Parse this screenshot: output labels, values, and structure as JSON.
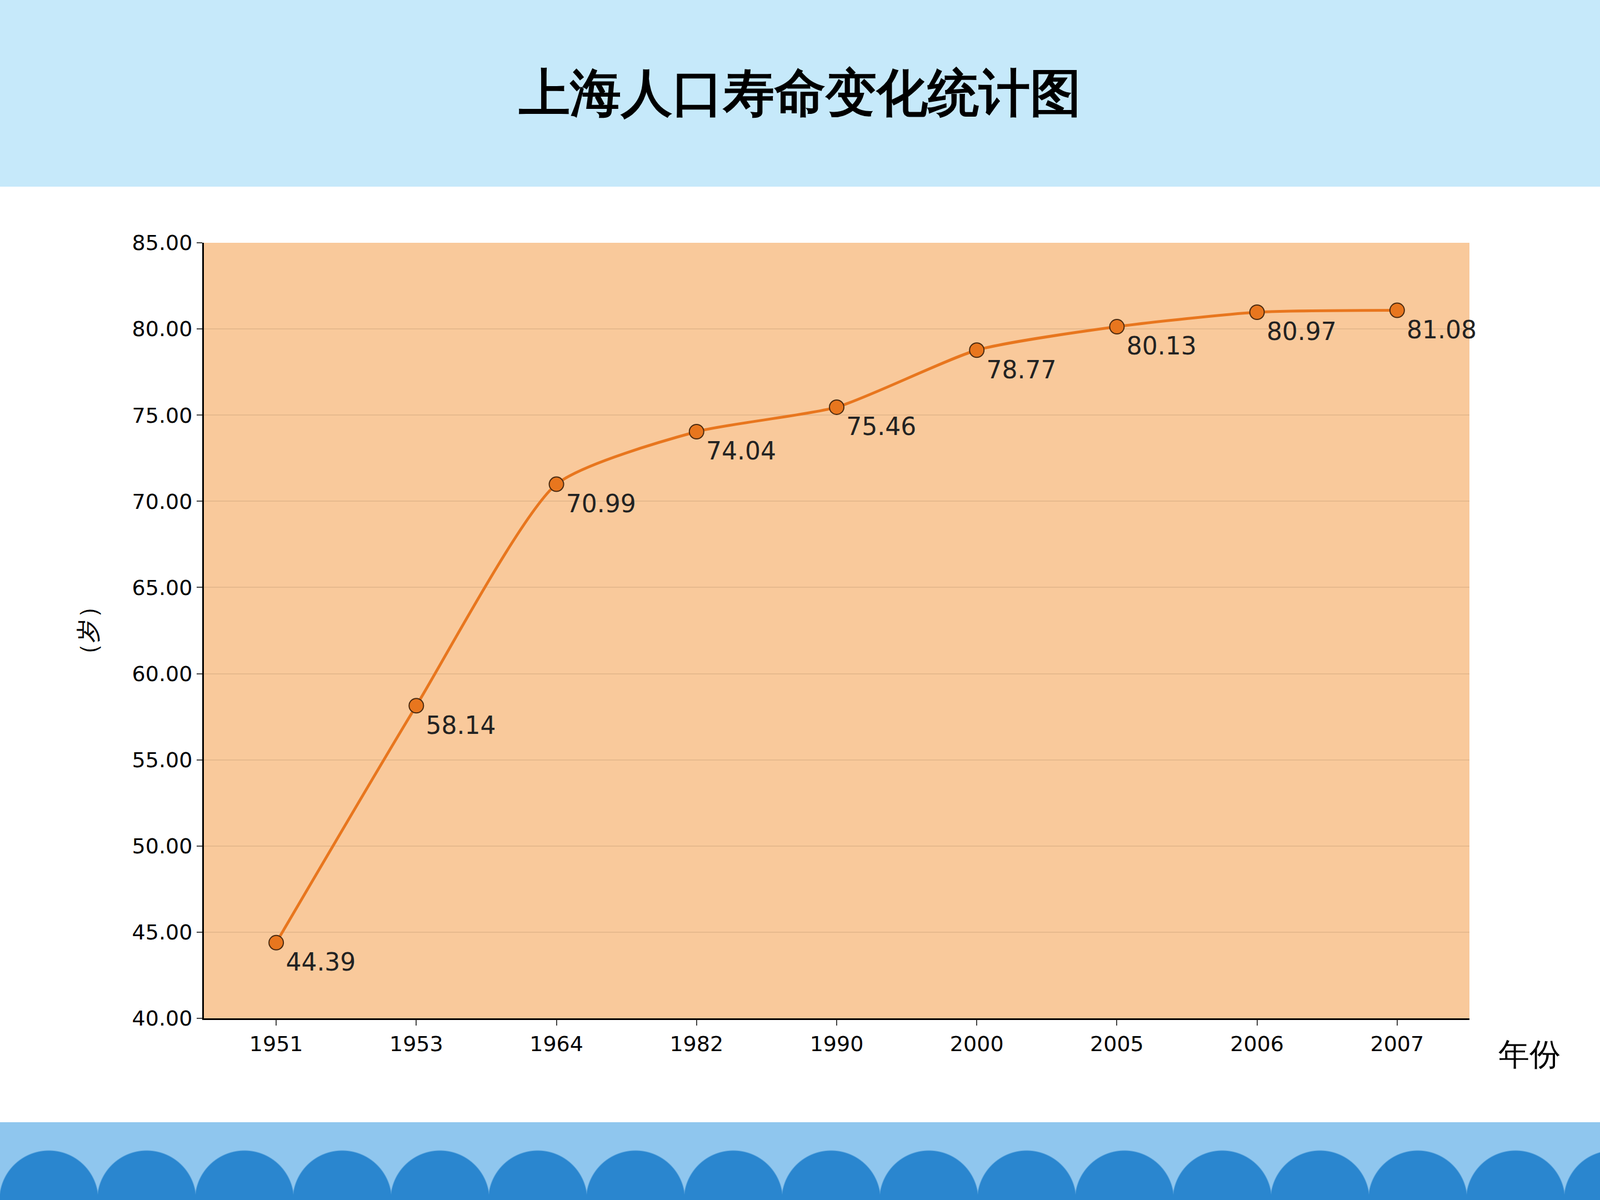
{
  "chart_data": {
    "type": "line",
    "title": "上海人口寿命变化统计图",
    "x_label": "年份",
    "y_label": "（岁）",
    "categories": [
      "1951",
      "1953",
      "1964",
      "1982",
      "1990",
      "2000",
      "2005",
      "2006",
      "2007"
    ],
    "values": [
      44.39,
      58.14,
      70.99,
      74.04,
      75.46,
      78.77,
      80.13,
      80.97,
      81.08
    ],
    "color": "#e8761e",
    "marker": "circle",
    "ylim": [
      40,
      85
    ],
    "yticks": [
      {
        "value": 40,
        "label": "40.00"
      },
      {
        "value": 45,
        "label": "45.00"
      },
      {
        "value": 50,
        "label": "50.00"
      },
      {
        "value": 55,
        "label": "55.00"
      },
      {
        "value": 60,
        "label": "60.00"
      },
      {
        "value": 65,
        "label": "65.00"
      },
      {
        "value": 70,
        "label": "70.00"
      },
      {
        "value": 75,
        "label": "75.00"
      },
      {
        "value": 80,
        "label": "80.00"
      },
      {
        "value": 85,
        "label": "85.00"
      }
    ],
    "grid": true,
    "data_labels": true
  }
}
